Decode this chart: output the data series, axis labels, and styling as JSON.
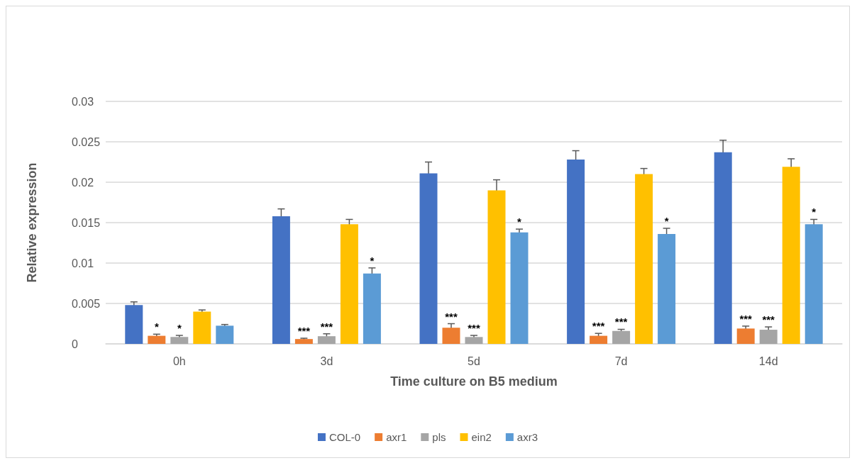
{
  "chart_data": {
    "type": "bar",
    "xlabel": "Time culture on B5 medium",
    "ylabel": "Relative expression",
    "categories": [
      "0h",
      "3d",
      "5d",
      "7d",
      "14d"
    ],
    "ylim": [
      0,
      0.03
    ],
    "yticks": [
      0,
      0.005,
      0.01,
      0.015,
      0.02,
      0.025,
      0.03
    ],
    "grid": "y",
    "legend": "bottom",
    "series": [
      {
        "name": "COL-0",
        "color": "#4472c4",
        "values": [
          0.0048,
          0.0158,
          0.0211,
          0.0228,
          0.0237
        ],
        "errors": [
          0.0004,
          0.0009,
          0.0014,
          0.0011,
          0.0015
        ]
      },
      {
        "name": "axr1",
        "color": "#ed7d31",
        "values": [
          0.001,
          0.0006,
          0.002,
          0.001,
          0.0019
        ],
        "errors": [
          0.0002,
          0.0001,
          0.0005,
          0.0003,
          0.0003
        ],
        "value_labels": [
          "*",
          "***",
          "***",
          "***",
          "***"
        ]
      },
      {
        "name": "pls",
        "color": "#a5a5a5",
        "values": [
          0.00085,
          0.00095,
          0.00085,
          0.0016,
          0.00175
        ],
        "errors": [
          0.0002,
          0.0003,
          0.0002,
          0.0002,
          0.00035
        ],
        "value_labels": [
          "*",
          "***",
          "***",
          "***",
          "***"
        ]
      },
      {
        "name": "ein2",
        "color": "#ffc000",
        "values": [
          0.004,
          0.0148,
          0.019,
          0.021,
          0.0219
        ],
        "errors": [
          0.0002,
          0.0006,
          0.0013,
          0.0007,
          0.001
        ]
      },
      {
        "name": "axr3",
        "color": "#5b9bd5",
        "values": [
          0.00225,
          0.0087,
          0.0138,
          0.0136,
          0.0148
        ],
        "errors": [
          0.00015,
          0.0007,
          0.0004,
          0.0007,
          0.0006
        ],
        "value_labels": [
          null,
          "*",
          "*",
          "*",
          "*"
        ]
      }
    ]
  }
}
